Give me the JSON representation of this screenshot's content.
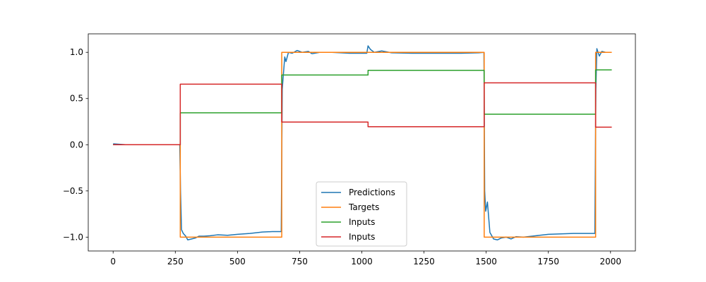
{
  "chart_data": {
    "type": "line",
    "title": "",
    "xlabel": "",
    "ylabel": "",
    "xlim": [
      -100,
      2100
    ],
    "ylim": [
      -1.15,
      1.2
    ],
    "xticks": [
      0,
      250,
      500,
      750,
      1000,
      1250,
      1500,
      1750,
      2000
    ],
    "yticks": [
      -1.0,
      -0.5,
      0.0,
      0.5,
      1.0
    ],
    "ytick_labels": [
      "−1.0",
      "−0.5",
      "0.0",
      "0.5",
      "1.0"
    ],
    "grid": false,
    "legend_position": "lower-center",
    "series": [
      {
        "name": "Predictions",
        "color": "#1f77b4",
        "points": [
          [
            0,
            0.01
          ],
          [
            50,
            0.0
          ],
          [
            150,
            0.0
          ],
          [
            268,
            0.0
          ],
          [
            271,
            -0.5
          ],
          [
            275,
            -0.92
          ],
          [
            282,
            -0.96
          ],
          [
            292,
            -0.99
          ],
          [
            300,
            -1.03
          ],
          [
            315,
            -1.02
          ],
          [
            330,
            -1.01
          ],
          [
            345,
            -0.99
          ],
          [
            365,
            -0.99
          ],
          [
            390,
            -0.985
          ],
          [
            420,
            -0.975
          ],
          [
            460,
            -0.98
          ],
          [
            500,
            -0.97
          ],
          [
            550,
            -0.96
          ],
          [
            600,
            -0.945
          ],
          [
            640,
            -0.94
          ],
          [
            676,
            -0.94
          ],
          [
            680,
            0.6
          ],
          [
            690,
            0.95
          ],
          [
            695,
            0.9
          ],
          [
            705,
            1.0
          ],
          [
            720,
            0.99
          ],
          [
            740,
            1.02
          ],
          [
            760,
            1.0
          ],
          [
            785,
            1.01
          ],
          [
            800,
            0.985
          ],
          [
            830,
            1.0
          ],
          [
            880,
            1.0
          ],
          [
            950,
            0.99
          ],
          [
            1010,
            0.99
          ],
          [
            1020,
            0.99
          ],
          [
            1025,
            1.07
          ],
          [
            1035,
            1.03
          ],
          [
            1050,
            1.0
          ],
          [
            1080,
            1.015
          ],
          [
            1120,
            0.995
          ],
          [
            1200,
            0.99
          ],
          [
            1300,
            0.99
          ],
          [
            1400,
            0.99
          ],
          [
            1470,
            0.995
          ],
          [
            1491,
            1.0
          ],
          [
            1494,
            -0.5
          ],
          [
            1498,
            -0.72
          ],
          [
            1505,
            -0.62
          ],
          [
            1515,
            -0.95
          ],
          [
            1530,
            -1.02
          ],
          [
            1545,
            -1.03
          ],
          [
            1560,
            -1.01
          ],
          [
            1580,
            -1.0
          ],
          [
            1600,
            -1.02
          ],
          [
            1620,
            -0.995
          ],
          [
            1650,
            -1.0
          ],
          [
            1700,
            -0.985
          ],
          [
            1750,
            -0.97
          ],
          [
            1850,
            -0.96
          ],
          [
            1937,
            -0.96
          ],
          [
            1941,
            0.6
          ],
          [
            1945,
            1.04
          ],
          [
            1955,
            0.96
          ],
          [
            1965,
            1.01
          ],
          [
            1980,
            1.0
          ],
          [
            2000,
            1.0
          ]
        ]
      },
      {
        "name": "Targets",
        "color": "#ff7f0e",
        "points": [
          [
            0,
            0.0
          ],
          [
            270,
            0.0
          ],
          [
            270,
            -1.0
          ],
          [
            678,
            -1.0
          ],
          [
            678,
            1.0
          ],
          [
            1492,
            1.0
          ],
          [
            1492,
            -1.0
          ],
          [
            1940,
            -1.0
          ],
          [
            1940,
            1.0
          ],
          [
            2005,
            1.0
          ]
        ]
      },
      {
        "name": "Inputs",
        "color": "#2ca02c",
        "points": [
          [
            0,
            0.0
          ],
          [
            270,
            0.0
          ],
          [
            270,
            0.345
          ],
          [
            678,
            0.345
          ],
          [
            678,
            0.755
          ],
          [
            1025,
            0.755
          ],
          [
            1025,
            0.805
          ],
          [
            1492,
            0.805
          ],
          [
            1492,
            0.33
          ],
          [
            1940,
            0.33
          ],
          [
            1940,
            0.81
          ],
          [
            2005,
            0.81
          ]
        ]
      },
      {
        "name": "Inputs",
        "color": "#d62728",
        "points": [
          [
            0,
            0.0
          ],
          [
            270,
            0.0
          ],
          [
            270,
            0.655
          ],
          [
            678,
            0.655
          ],
          [
            678,
            0.245
          ],
          [
            1025,
            0.245
          ],
          [
            1025,
            0.195
          ],
          [
            1492,
            0.195
          ],
          [
            1492,
            0.67
          ],
          [
            1940,
            0.67
          ],
          [
            1940,
            0.19
          ],
          [
            2005,
            0.19
          ]
        ]
      }
    ]
  }
}
